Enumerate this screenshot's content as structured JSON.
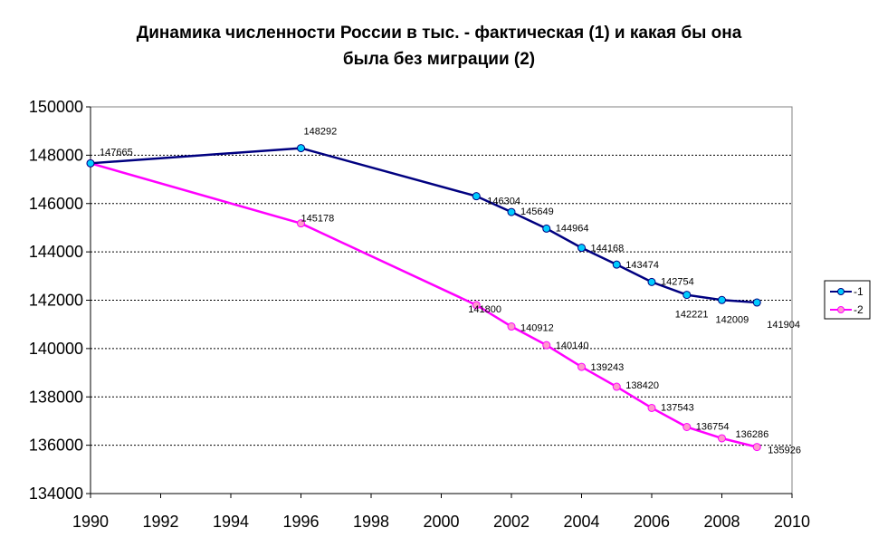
{
  "chart_data": {
    "type": "line",
    "title_line1": "Динамика численности России в тыс. - фактическая (1) и какая бы она",
    "title_line2": "была без миграции (2)",
    "xlabel": "",
    "ylabel": "",
    "xlim": [
      1990,
      2010
    ],
    "ylim": [
      134000,
      150000
    ],
    "x_ticks": [
      "1990",
      "1992",
      "1994",
      "1996",
      "1998",
      "2000",
      "2002",
      "2004",
      "2006",
      "2008",
      "2010"
    ],
    "y_ticks": [
      "134000",
      "136000",
      "138000",
      "140000",
      "142000",
      "144000",
      "146000",
      "148000",
      "150000"
    ],
    "grid": "horizontal dashed",
    "legend_position": "right",
    "series": [
      {
        "name": "-1",
        "color": "#000080",
        "marker_color": "#00ccff",
        "points": [
          {
            "x": 1990,
            "y": 147665,
            "label": "147665"
          },
          {
            "x": 1996,
            "y": 148292,
            "label": "148292"
          },
          {
            "x": 2001,
            "y": 146304,
            "label": "146304"
          },
          {
            "x": 2002,
            "y": 145649,
            "label": "145649"
          },
          {
            "x": 2003,
            "y": 144964,
            "label": "144964"
          },
          {
            "x": 2004,
            "y": 144168,
            "label": "144168"
          },
          {
            "x": 2005,
            "y": 143474,
            "label": "143474"
          },
          {
            "x": 2006,
            "y": 142754,
            "label": "142754"
          },
          {
            "x": 2007,
            "y": 142221,
            "label": "142221"
          },
          {
            "x": 2008,
            "y": 142009,
            "label": "142009"
          },
          {
            "x": 2009,
            "y": 141904,
            "label": "141904"
          }
        ]
      },
      {
        "name": "-2",
        "color": "#ff00ff",
        "marker_color": "#ff99cc",
        "points": [
          {
            "x": 1990,
            "y": 147665,
            "label": ""
          },
          {
            "x": 1996,
            "y": 145178,
            "label": "145178"
          },
          {
            "x": 2001,
            "y": 141800,
            "label": "141800"
          },
          {
            "x": 2002,
            "y": 140912,
            "label": "140912"
          },
          {
            "x": 2003,
            "y": 140140,
            "label": "140140"
          },
          {
            "x": 2004,
            "y": 139243,
            "label": "139243"
          },
          {
            "x": 2005,
            "y": 138420,
            "label": "138420"
          },
          {
            "x": 2006,
            "y": 137543,
            "label": "137543"
          },
          {
            "x": 2007,
            "y": 136754,
            "label": "136754"
          },
          {
            "x": 2008,
            "y": 136286,
            "label": "136286"
          },
          {
            "x": 2009,
            "y": 135926,
            "label": "135926"
          }
        ]
      }
    ]
  }
}
